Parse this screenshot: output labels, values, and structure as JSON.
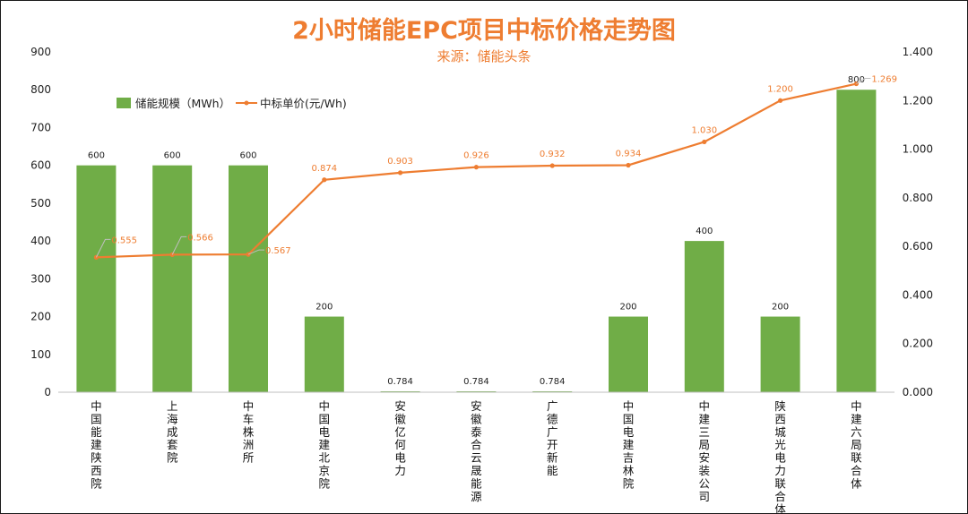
{
  "chart_data": {
    "type": "bar",
    "title": "2小时储能EPC项目中标价格走势图",
    "subtitle": "来源：储能头条",
    "categories": [
      "中国能建陕西院",
      "上海成套院",
      "中车株洲所",
      "中国电建北京院",
      "安徽亿何电力",
      "安徽泰合云晟能源",
      "广德广开新能",
      "中国电建吉林院",
      "中建三局安装公司",
      "陕西城光电力联合体",
      "中建六局联合体"
    ],
    "series": [
      {
        "name": "储能规模（MWh）",
        "type": "bar",
        "axis": "left",
        "color": "#70ad47",
        "values": [
          600,
          600,
          600,
          200,
          0.784,
          0.784,
          0.784,
          200,
          400,
          200,
          800
        ],
        "labels": [
          "600",
          "600",
          "600",
          "200",
          "0.784",
          "0.784",
          "0.784",
          "200",
          "400",
          "200",
          "800"
        ]
      },
      {
        "name": "中标单价(元/Wh)",
        "type": "line",
        "axis": "right",
        "color": "#ee7d31",
        "values": [
          0.555,
          0.566,
          0.567,
          0.874,
          0.903,
          0.926,
          0.932,
          0.934,
          1.03,
          1.2,
          1.269
        ],
        "labels": [
          "0.555",
          "0.566",
          "0.567",
          "0.874",
          "0.903",
          "0.926",
          "0.932",
          "0.934",
          "1.030",
          "1.200",
          "1.269"
        ]
      }
    ],
    "y_left": {
      "min": 0,
      "max": 900,
      "step": 100,
      "ticks": [
        "0",
        "100",
        "200",
        "300",
        "400",
        "500",
        "600",
        "700",
        "800",
        "900"
      ]
    },
    "y_right": {
      "min": 0,
      "max": 1.4,
      "step": 0.2,
      "ticks": [
        "0.000",
        "0.200",
        "0.400",
        "0.600",
        "0.800",
        "1.000",
        "1.200",
        "1.400"
      ]
    },
    "grid": false,
    "legend_position": "top-left"
  }
}
